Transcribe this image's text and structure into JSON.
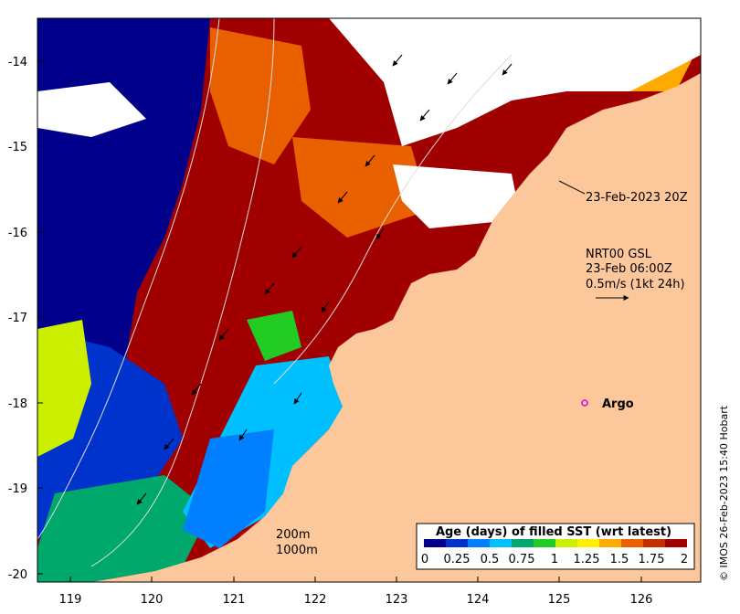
{
  "axes": {
    "x_ticks": [
      "119",
      "120",
      "121",
      "122",
      "123",
      "124",
      "125",
      "126"
    ],
    "y_ticks": [
      "-14",
      "-15",
      "-16",
      "-17",
      "-18",
      "-19",
      "-20"
    ]
  },
  "annotations": {
    "sst_time": "23-Feb-2023 20Z",
    "current_source": "NRT00 GSL",
    "current_time": "23-Feb 06:00Z",
    "current_scale": "0.5m/s (1kt 24h)",
    "argo_label": "Argo",
    "isobath_200": "200m",
    "isobath_1000": "1000m",
    "credit": "© IMOS 26-Feb-2023 15:40 Hobart"
  },
  "colorbar": {
    "title": "Age (days) of filled SST (wrt latest)",
    "ticks": [
      "0",
      "0.25",
      "0.5",
      "0.75",
      "1",
      "1.25",
      "1.5",
      "1.75",
      "2"
    ],
    "colors": [
      "#00008b",
      "#0033cc",
      "#0080ff",
      "#00bfff",
      "#00a86b",
      "#22cc22",
      "#ccee00",
      "#ffee00",
      "#ffaa00",
      "#e86000",
      "#c03000",
      "#a00000"
    ]
  },
  "colors": {
    "land": "#fcc79a",
    "nodata": "#ffffff",
    "argo": "#e000e0"
  }
}
